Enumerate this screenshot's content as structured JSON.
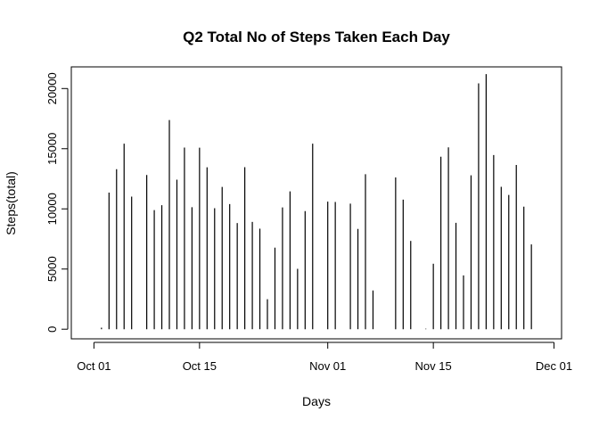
{
  "chart_data": {
    "type": "bar",
    "title": "Q2 Total No of Steps Taken Each Day",
    "xlabel": "Days",
    "ylabel": "Steps(total)",
    "x_start": "2012-10-01",
    "x_end": "2012-11-30",
    "xlim": [
      "2012-09-28",
      "2012-12-02"
    ],
    "ylim": [
      -800,
      21800
    ],
    "x_ticks": [
      {
        "date": "2012-10-01",
        "label": "Oct 01"
      },
      {
        "date": "2012-10-15",
        "label": "Oct 15"
      },
      {
        "date": "2012-11-01",
        "label": "Nov 01"
      },
      {
        "date": "2012-11-15",
        "label": "Nov 15"
      },
      {
        "date": "2012-12-01",
        "label": "Dec 01"
      }
    ],
    "y_ticks": [
      0,
      5000,
      10000,
      15000,
      20000
    ],
    "grid": false,
    "values": [
      0,
      126,
      11352,
      13294,
      15420,
      11015,
      0,
      12811,
      9900,
      10304,
      17382,
      12426,
      15098,
      10139,
      15084,
      13452,
      10056,
      11829,
      10395,
      8821,
      13460,
      8918,
      8355,
      2492,
      6778,
      10119,
      11458,
      5018,
      9819,
      15414,
      0,
      10600,
      10571,
      0,
      10439,
      8334,
      12883,
      3219,
      0,
      0,
      12608,
      10765,
      7336,
      0,
      41,
      5441,
      14339,
      15110,
      8841,
      4472,
      12787,
      20427,
      21194,
      14478,
      11834,
      11162,
      13646,
      10183,
      7047,
      0
    ]
  }
}
